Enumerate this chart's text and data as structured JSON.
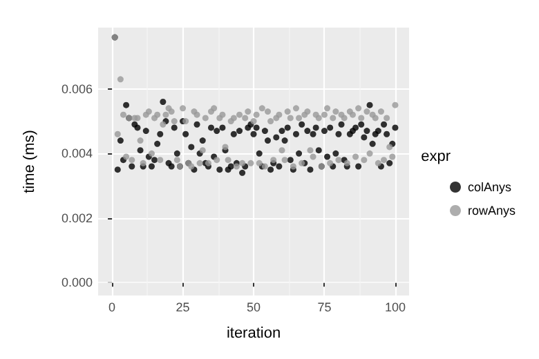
{
  "chart_data": {
    "type": "scatter",
    "xlabel": "iteration",
    "ylabel": "time (ms)",
    "legend_title": "expr",
    "legend": "right",
    "grid": true,
    "marker": "circle",
    "xlim": [
      -4.9,
      104.9
    ],
    "xticks": [
      0,
      25,
      50,
      75,
      100
    ],
    "ylim": [
      -0.0004,
      0.0079
    ],
    "yticks": [
      {
        "value": 0,
        "label": "0.000"
      },
      {
        "value": 0.002,
        "label": "0.002"
      },
      {
        "value": 0.004,
        "label": "0.004"
      },
      {
        "value": 0.006,
        "label": "0.006"
      }
    ],
    "x": [
      1,
      2,
      3,
      4,
      5,
      6,
      7,
      8,
      9,
      10,
      11,
      12,
      13,
      14,
      15,
      16,
      17,
      18,
      19,
      20,
      21,
      22,
      23,
      24,
      25,
      26,
      27,
      28,
      29,
      30,
      31,
      32,
      33,
      34,
      35,
      36,
      37,
      38,
      39,
      40,
      41,
      42,
      43,
      44,
      45,
      46,
      47,
      48,
      49,
      50,
      51,
      52,
      53,
      54,
      55,
      56,
      57,
      58,
      59,
      60,
      61,
      62,
      63,
      64,
      65,
      66,
      67,
      68,
      69,
      70,
      71,
      72,
      73,
      74,
      75,
      76,
      77,
      78,
      79,
      80,
      81,
      82,
      83,
      84,
      85,
      86,
      87,
      88,
      89,
      90,
      91,
      92,
      93,
      94,
      95,
      96,
      97,
      98,
      99,
      100
    ],
    "series": [
      {
        "name": "colAnys",
        "color": "#000000",
        "values": [
          0.0076,
          0.0035,
          0.0044,
          0.0038,
          0.0055,
          0.0051,
          0.0036,
          0.0049,
          0.0048,
          0.0041,
          0.0036,
          0.0047,
          0.0039,
          0.0036,
          0.0038,
          0.0043,
          0.0046,
          0.0056,
          0.005,
          0.0037,
          0.0036,
          0.0048,
          0.004,
          0.0036,
          0.005,
          0.0046,
          0.0037,
          0.0042,
          0.0035,
          0.0049,
          0.004,
          0.0044,
          0.0037,
          0.0036,
          0.0048,
          0.0039,
          0.0047,
          0.0035,
          0.0048,
          0.0041,
          0.0035,
          0.0036,
          0.0046,
          0.0037,
          0.0047,
          0.0034,
          0.0036,
          0.0048,
          0.0049,
          0.0046,
          0.0048,
          0.004,
          0.0036,
          0.0047,
          0.0044,
          0.0035,
          0.0037,
          0.0045,
          0.0036,
          0.0047,
          0.0044,
          0.0048,
          0.0038,
          0.0035,
          0.0046,
          0.004,
          0.0049,
          0.0037,
          0.0047,
          0.0035,
          0.0046,
          0.0048,
          0.0041,
          0.0036,
          0.0047,
          0.0039,
          0.0048,
          0.0036,
          0.004,
          0.0046,
          0.0049,
          0.0038,
          0.0036,
          0.0046,
          0.0047,
          0.0048,
          0.0036,
          0.0049,
          0.0045,
          0.0047,
          0.0055,
          0.0043,
          0.0046,
          0.0047,
          0.0036,
          0.0049,
          0.0046,
          0.0037,
          0.0043,
          0.0048
        ]
      },
      {
        "name": "rowAnys",
        "color": "#999999",
        "values": [
          0.0076,
          0.0046,
          0.0063,
          0.0052,
          0.0039,
          0.0051,
          0.0038,
          0.0051,
          0.0051,
          0.0044,
          0.0037,
          0.0052,
          0.0053,
          0.004,
          0.0051,
          0.0052,
          0.0038,
          0.0049,
          0.0052,
          0.0054,
          0.0053,
          0.005,
          0.0038,
          0.0036,
          0.0054,
          0.005,
          0.0037,
          0.0036,
          0.0053,
          0.0052,
          0.0037,
          0.0041,
          0.0051,
          0.0037,
          0.0053,
          0.0054,
          0.0038,
          0.0051,
          0.0052,
          0.0042,
          0.0038,
          0.005,
          0.0051,
          0.0036,
          0.0052,
          0.0037,
          0.0051,
          0.0053,
          0.0037,
          0.005,
          0.0052,
          0.0037,
          0.0054,
          0.0036,
          0.0053,
          0.005,
          0.0038,
          0.0051,
          0.0052,
          0.0041,
          0.0038,
          0.0053,
          0.0051,
          0.0036,
          0.0054,
          0.0051,
          0.0037,
          0.0052,
          0.0053,
          0.0041,
          0.0039,
          0.0052,
          0.0051,
          0.0036,
          0.0052,
          0.0054,
          0.0037,
          0.0051,
          0.0053,
          0.0038,
          0.0052,
          0.0051,
          0.0037,
          0.0053,
          0.0052,
          0.0039,
          0.0054,
          0.0051,
          0.0038,
          0.0053,
          0.004,
          0.0052,
          0.0051,
          0.0037,
          0.0053,
          0.0038,
          0.0051,
          0.0042,
          0.0039,
          0.0055
        ]
      }
    ]
  }
}
